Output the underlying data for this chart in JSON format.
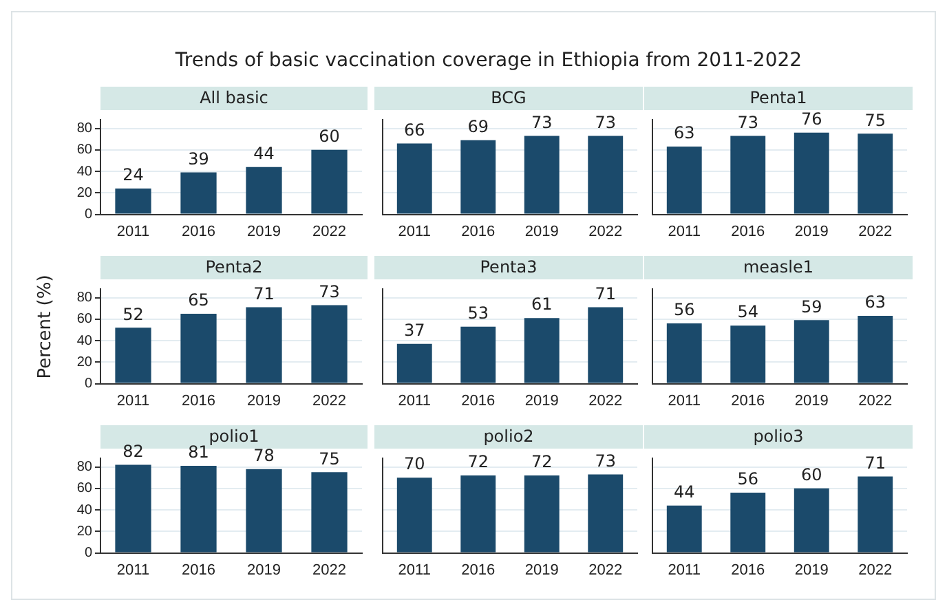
{
  "chart_data": [
    {
      "type": "bar",
      "title": "Trends of basic vaccination coverage in Ethiopia from 2011-2022",
      "subtitle": "All basic",
      "categories": [
        "2011",
        "2016",
        "2019",
        "2022"
      ],
      "values": [
        24,
        39,
        44,
        60
      ],
      "color": "#1b4a6b",
      "ylim": [
        0,
        88
      ],
      "yticks": [
        0,
        20,
        40,
        60,
        80
      ],
      "data_labels": true,
      "grid": "y"
    },
    {
      "type": "bar",
      "subtitle": "BCG",
      "categories": [
        "2011",
        "2016",
        "2019",
        "2022"
      ],
      "values": [
        66,
        69,
        73,
        73
      ],
      "color": "#1b4a6b",
      "ylim": [
        0,
        88
      ],
      "yticks": [
        0,
        20,
        40,
        60,
        80
      ],
      "data_labels": true,
      "grid": "y",
      "tick_labels": "x"
    },
    {
      "type": "bar",
      "subtitle": "Penta1",
      "categories": [
        "2011",
        "2016",
        "2019",
        "2022"
      ],
      "values": [
        63,
        73,
        76,
        75
      ],
      "color": "#1b4a6b",
      "ylim": [
        0,
        88
      ],
      "yticks": [
        0,
        20,
        40,
        60,
        80
      ],
      "data_labels": true,
      "grid": "y",
      "tick_labels": "x"
    },
    {
      "type": "bar",
      "subtitle": "Penta2",
      "ylabel": "Percent (%)",
      "categories": [
        "2011",
        "2016",
        "2019",
        "2022"
      ],
      "values": [
        52,
        65,
        71,
        73
      ],
      "color": "#1b4a6b",
      "ylim": [
        0,
        88
      ],
      "yticks": [
        0,
        20,
        40,
        60,
        80
      ],
      "data_labels": true,
      "grid": "y"
    },
    {
      "type": "bar",
      "subtitle": "Penta3",
      "categories": [
        "2011",
        "2016",
        "2019",
        "2022"
      ],
      "values": [
        37,
        53,
        61,
        71
      ],
      "color": "#1b4a6b",
      "ylim": [
        0,
        88
      ],
      "yticks": [
        0,
        20,
        40,
        60,
        80
      ],
      "data_labels": true,
      "grid": "y",
      "tick_labels": "x"
    },
    {
      "type": "bar",
      "subtitle": "measle1",
      "categories": [
        "2011",
        "2016",
        "2019",
        "2022"
      ],
      "values": [
        56,
        54,
        59,
        63
      ],
      "color": "#1b4a6b",
      "ylim": [
        0,
        88
      ],
      "yticks": [
        0,
        20,
        40,
        60,
        80
      ],
      "data_labels": true,
      "grid": "y",
      "tick_labels": "x"
    },
    {
      "type": "bar",
      "subtitle": "polio1",
      "categories": [
        "2011",
        "2016",
        "2019",
        "2022"
      ],
      "values": [
        82,
        81,
        78,
        75
      ],
      "color": "#1b4a6b",
      "ylim": [
        0,
        88
      ],
      "yticks": [
        0,
        20,
        40,
        60,
        80
      ],
      "data_labels": true,
      "grid": "y"
    },
    {
      "type": "bar",
      "subtitle": "polio2",
      "categories": [
        "2011",
        "2016",
        "2019",
        "2022"
      ],
      "values": [
        70,
        72,
        72,
        73
      ],
      "color": "#1b4a6b",
      "ylim": [
        0,
        88
      ],
      "yticks": [
        0,
        20,
        40,
        60,
        80
      ],
      "data_labels": true,
      "grid": "y",
      "tick_labels": "x"
    },
    {
      "type": "bar",
      "subtitle": "polio3",
      "categories": [
        "2011",
        "2016",
        "2019",
        "2022"
      ],
      "values": [
        44,
        56,
        60,
        71
      ],
      "color": "#1b4a6b",
      "ylim": [
        0,
        88
      ],
      "yticks": [
        0,
        20,
        40,
        60,
        80
      ],
      "data_labels": true,
      "grid": "y",
      "tick_labels": "x"
    }
  ]
}
